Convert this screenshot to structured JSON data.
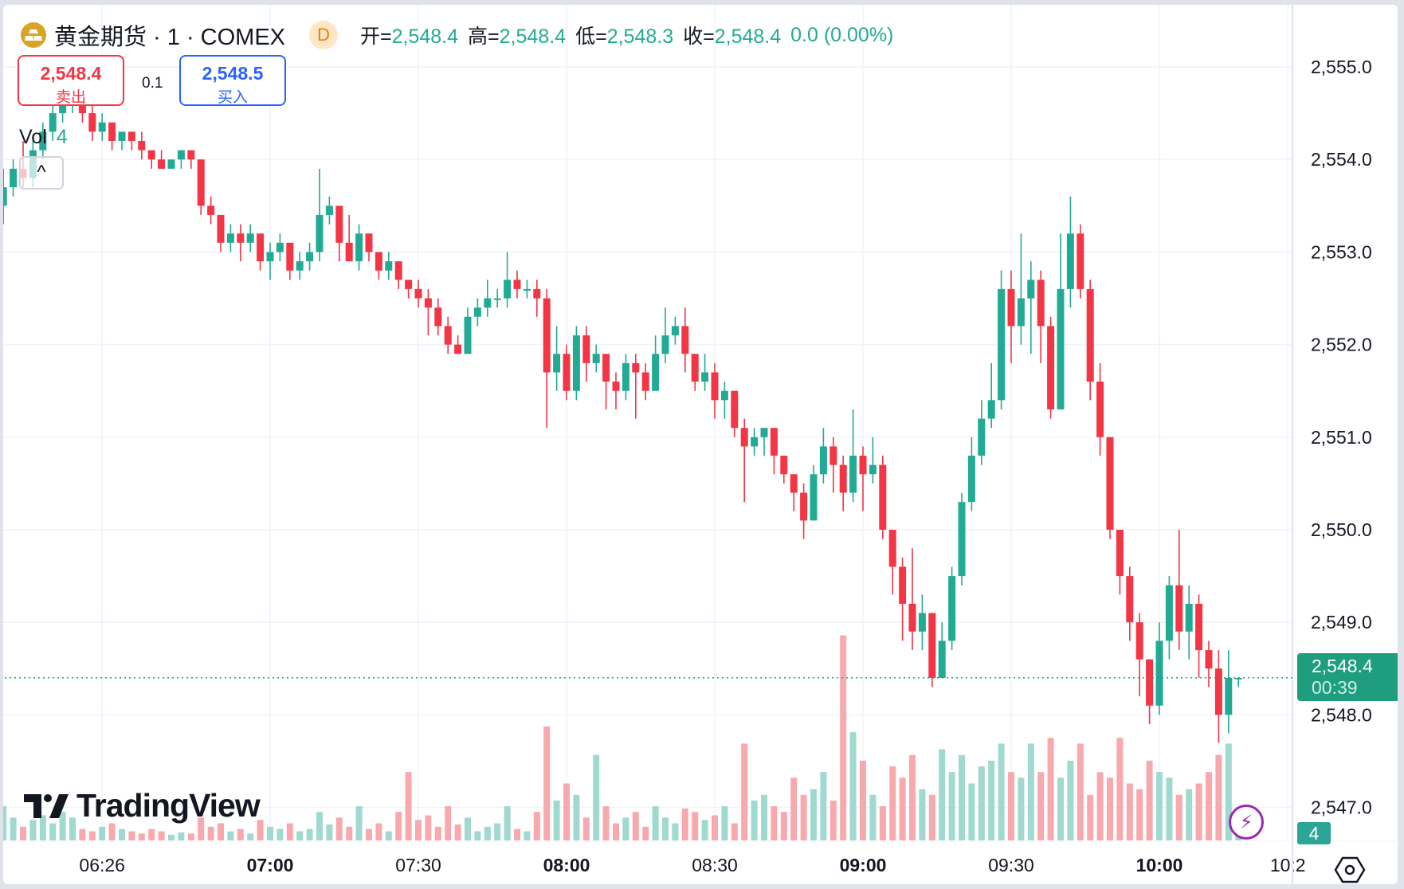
{
  "header": {
    "symbol": "黄金期货 · 1 · COMEX",
    "interval_badge": "D",
    "open_label": "开=",
    "open": "2,548.4",
    "high_label": "高=",
    "high": "2,548.4",
    "low_label": "低=",
    "low": "2,548.3",
    "close_label": "收=",
    "close": "2,548.4",
    "change": "0.0 (0.00%)"
  },
  "trade": {
    "sell_price": "2,548.4",
    "sell_label": "卖出",
    "spread": "0.1",
    "buy_price": "2,548.5",
    "buy_label": "买入"
  },
  "volume_legend": {
    "label": "Vol",
    "value": "4"
  },
  "collapse_icon": "chevron-up-icon",
  "brand": "TradingView",
  "last_price": {
    "price": "2,548.4",
    "countdown": "00:39"
  },
  "last_volume": "4",
  "colors": {
    "up": "#22ab94",
    "down": "#f23645",
    "up_volume": "#9fd9cf",
    "down_volume": "#f7a9ae",
    "last_price": "#1e9e7e"
  },
  "chart_data": {
    "type": "candlestick",
    "interval_minutes": 2,
    "first_time": "06:06",
    "ylim": [
      2546.7,
      2555.3
    ],
    "y_ticks": [
      "2,555.0",
      "2,554.0",
      "2,553.0",
      "2,552.0",
      "2,551.0",
      "2,550.0",
      "2,549.0",
      "2,548.0",
      "2,547.0"
    ],
    "y_tick_values": [
      2555,
      2554,
      2553,
      2552,
      2551,
      2550,
      2549,
      2548,
      2547
    ],
    "x_ticks": [
      {
        "label": "06:26",
        "bold": false
      },
      {
        "label": "07:00",
        "bold": true
      },
      {
        "label": "07:30",
        "bold": false
      },
      {
        "label": "08:00",
        "bold": true
      },
      {
        "label": "08:30",
        "bold": false
      },
      {
        "label": "09:00",
        "bold": true
      },
      {
        "label": "09:30",
        "bold": false
      },
      {
        "label": "10:00",
        "bold": true
      },
      {
        "label": "10:2",
        "bold": false
      }
    ],
    "grid": true,
    "ohlc": [
      [
        2553.5,
        2553.9,
        2553.3,
        2553.7
      ],
      [
        2553.7,
        2554.0,
        2553.6,
        2553.9
      ],
      [
        2553.9,
        2554.2,
        2553.7,
        2553.8
      ],
      [
        2553.8,
        2554.2,
        2553.7,
        2554.1
      ],
      [
        2554.1,
        2554.4,
        2554.0,
        2554.3
      ],
      [
        2554.3,
        2554.6,
        2554.2,
        2554.5
      ],
      [
        2554.5,
        2554.7,
        2554.4,
        2554.6
      ],
      [
        2554.6,
        2554.8,
        2554.5,
        2554.7
      ],
      [
        2554.7,
        2554.8,
        2554.4,
        2554.5
      ],
      [
        2554.5,
        2554.6,
        2554.2,
        2554.3
      ],
      [
        2554.3,
        2554.5,
        2554.2,
        2554.4
      ],
      [
        2554.4,
        2554.4,
        2554.1,
        2554.2
      ],
      [
        2554.2,
        2554.3,
        2554.1,
        2554.3
      ],
      [
        2554.3,
        2554.3,
        2554.1,
        2554.2
      ],
      [
        2554.2,
        2554.3,
        2554.0,
        2554.1
      ],
      [
        2554.1,
        2554.1,
        2553.9,
        2554.0
      ],
      [
        2554.0,
        2554.1,
        2553.9,
        2553.9
      ],
      [
        2553.9,
        2554.0,
        2553.9,
        2554.0
      ],
      [
        2554.0,
        2554.1,
        2553.9,
        2554.1
      ],
      [
        2554.1,
        2554.1,
        2553.9,
        2554.0
      ],
      [
        2554.0,
        2554.0,
        2553.4,
        2553.5
      ],
      [
        2553.5,
        2553.6,
        2553.3,
        2553.4
      ],
      [
        2553.4,
        2553.4,
        2553.0,
        2553.1
      ],
      [
        2553.1,
        2553.3,
        2553.0,
        2553.2
      ],
      [
        2553.2,
        2553.3,
        2552.9,
        2553.1
      ],
      [
        2553.1,
        2553.3,
        2553.0,
        2553.2
      ],
      [
        2553.2,
        2553.2,
        2552.8,
        2552.9
      ],
      [
        2552.9,
        2553.1,
        2552.7,
        2553.0
      ],
      [
        2553.0,
        2553.2,
        2552.9,
        2553.1
      ],
      [
        2553.1,
        2553.1,
        2552.7,
        2552.8
      ],
      [
        2552.8,
        2553.0,
        2552.7,
        2552.9
      ],
      [
        2552.9,
        2553.1,
        2552.8,
        2553.0
      ],
      [
        2553.0,
        2553.9,
        2552.9,
        2553.4
      ],
      [
        2553.4,
        2553.6,
        2553.3,
        2553.5
      ],
      [
        2553.5,
        2553.5,
        2552.9,
        2553.1
      ],
      [
        2553.1,
        2553.4,
        2552.9,
        2552.9
      ],
      [
        2552.9,
        2553.3,
        2552.8,
        2553.2
      ],
      [
        2553.2,
        2553.2,
        2552.9,
        2553.0
      ],
      [
        2553.0,
        2553.0,
        2552.7,
        2552.8
      ],
      [
        2552.8,
        2553.0,
        2552.7,
        2552.9
      ],
      [
        2552.9,
        2552.9,
        2552.6,
        2552.7
      ],
      [
        2552.7,
        2552.7,
        2552.5,
        2552.6
      ],
      [
        2552.6,
        2552.7,
        2552.4,
        2552.5
      ],
      [
        2552.5,
        2552.6,
        2552.1,
        2552.4
      ],
      [
        2552.4,
        2552.5,
        2552.1,
        2552.2
      ],
      [
        2552.2,
        2552.3,
        2551.9,
        2552.0
      ],
      [
        2552.0,
        2552.1,
        2551.9,
        2551.9
      ],
      [
        2551.9,
        2552.4,
        2551.9,
        2552.3
      ],
      [
        2552.3,
        2552.5,
        2552.2,
        2552.4
      ],
      [
        2552.4,
        2552.7,
        2552.3,
        2552.5
      ],
      [
        2552.5,
        2552.6,
        2552.4,
        2552.5
      ],
      [
        2552.5,
        2553.0,
        2552.4,
        2552.7
      ],
      [
        2552.7,
        2552.8,
        2552.5,
        2552.6
      ],
      [
        2552.6,
        2552.7,
        2552.5,
        2552.6
      ],
      [
        2552.6,
        2552.7,
        2552.3,
        2552.5
      ],
      [
        2552.5,
        2552.6,
        2551.1,
        2551.7
      ],
      [
        2551.7,
        2552.2,
        2551.5,
        2551.9
      ],
      [
        2551.9,
        2552.0,
        2551.4,
        2551.5
      ],
      [
        2551.5,
        2552.2,
        2551.4,
        2552.1
      ],
      [
        2552.1,
        2552.2,
        2551.6,
        2551.8
      ],
      [
        2551.8,
        2552.0,
        2551.7,
        2551.9
      ],
      [
        2551.9,
        2551.9,
        2551.3,
        2551.6
      ],
      [
        2551.6,
        2551.7,
        2551.3,
        2551.5
      ],
      [
        2551.5,
        2551.9,
        2551.4,
        2551.8
      ],
      [
        2551.8,
        2551.9,
        2551.2,
        2551.7
      ],
      [
        2551.7,
        2551.8,
        2551.4,
        2551.5
      ],
      [
        2551.5,
        2552.1,
        2551.5,
        2551.9
      ],
      [
        2551.9,
        2552.4,
        2551.8,
        2552.1
      ],
      [
        2552.1,
        2552.3,
        2552.0,
        2552.2
      ],
      [
        2552.2,
        2552.4,
        2551.7,
        2551.9
      ],
      [
        2551.9,
        2551.9,
        2551.5,
        2551.6
      ],
      [
        2551.6,
        2551.9,
        2551.5,
        2551.7
      ],
      [
        2551.7,
        2551.8,
        2551.2,
        2551.4
      ],
      [
        2551.4,
        2551.6,
        2551.2,
        2551.5
      ],
      [
        2551.5,
        2551.5,
        2551.0,
        2551.1
      ],
      [
        2551.1,
        2551.2,
        2550.3,
        2550.9
      ],
      [
        2550.9,
        2551.1,
        2550.8,
        2551.0
      ],
      [
        2551.0,
        2551.1,
        2550.8,
        2551.1
      ],
      [
        2551.1,
        2551.1,
        2550.6,
        2550.8
      ],
      [
        2550.8,
        2550.8,
        2550.5,
        2550.6
      ],
      [
        2550.6,
        2550.6,
        2550.2,
        2550.4
      ],
      [
        2550.4,
        2550.5,
        2549.9,
        2550.1
      ],
      [
        2550.1,
        2550.7,
        2550.1,
        2550.6
      ],
      [
        2550.6,
        2551.1,
        2550.5,
        2550.9
      ],
      [
        2550.9,
        2551.0,
        2550.4,
        2550.7
      ],
      [
        2550.7,
        2550.8,
        2550.2,
        2550.4
      ],
      [
        2550.4,
        2551.3,
        2550.3,
        2550.8
      ],
      [
        2550.8,
        2550.9,
        2550.2,
        2550.6
      ],
      [
        2550.6,
        2551.0,
        2550.5,
        2550.7
      ],
      [
        2550.7,
        2550.8,
        2549.9,
        2550.0
      ],
      [
        2550.0,
        2550.0,
        2549.3,
        2549.6
      ],
      [
        2549.6,
        2549.7,
        2548.8,
        2549.2
      ],
      [
        2549.2,
        2549.8,
        2548.7,
        2548.9
      ],
      [
        2548.9,
        2549.3,
        2548.7,
        2549.1
      ],
      [
        2549.1,
        2549.1,
        2548.3,
        2548.4
      ],
      [
        2548.4,
        2549.0,
        2548.4,
        2548.8
      ],
      [
        2548.8,
        2549.6,
        2548.7,
        2549.5
      ],
      [
        2549.5,
        2550.4,
        2549.4,
        2550.3
      ],
      [
        2550.3,
        2551.0,
        2550.2,
        2550.8
      ],
      [
        2550.8,
        2551.4,
        2550.7,
        2551.2
      ],
      [
        2551.2,
        2551.8,
        2551.1,
        2551.4
      ],
      [
        2551.4,
        2552.8,
        2551.3,
        2552.6
      ],
      [
        2552.6,
        2552.8,
        2551.8,
        2552.2
      ],
      [
        2552.2,
        2553.2,
        2552.0,
        2552.5
      ],
      [
        2552.5,
        2552.9,
        2551.9,
        2552.7
      ],
      [
        2552.7,
        2552.8,
        2551.8,
        2552.2
      ],
      [
        2552.2,
        2552.3,
        2551.2,
        2551.3
      ],
      [
        2551.3,
        2553.2,
        2551.3,
        2552.6
      ],
      [
        2552.6,
        2553.6,
        2552.4,
        2553.2
      ],
      [
        2553.2,
        2553.3,
        2552.5,
        2552.6
      ],
      [
        2552.6,
        2552.7,
        2551.4,
        2551.6
      ],
      [
        2551.6,
        2551.8,
        2550.8,
        2551.0
      ],
      [
        2551.0,
        2551.0,
        2549.9,
        2550.0
      ],
      [
        2550.0,
        2550.0,
        2549.3,
        2549.5
      ],
      [
        2549.5,
        2549.6,
        2548.8,
        2549.0
      ],
      [
        2549.0,
        2549.1,
        2548.2,
        2548.6
      ],
      [
        2548.6,
        2548.6,
        2547.9,
        2548.1
      ],
      [
        2548.1,
        2549.0,
        2548.0,
        2548.8
      ],
      [
        2548.8,
        2549.5,
        2548.6,
        2549.4
      ],
      [
        2549.4,
        2550.0,
        2548.7,
        2548.9
      ],
      [
        2548.9,
        2549.4,
        2548.6,
        2549.2
      ],
      [
        2549.2,
        2549.3,
        2548.4,
        2548.7
      ],
      [
        2548.7,
        2548.8,
        2548.3,
        2548.5
      ],
      [
        2548.5,
        2548.7,
        2547.7,
        2548.0
      ],
      [
        2548.0,
        2548.7,
        2547.8,
        2548.4
      ],
      [
        2548.4,
        2548.4,
        2548.3,
        2548.4
      ]
    ],
    "volume": [
      30,
      20,
      12,
      18,
      22,
      15,
      25,
      20,
      10,
      8,
      12,
      15,
      10,
      8,
      6,
      10,
      8,
      5,
      7,
      6,
      20,
      12,
      15,
      8,
      10,
      6,
      18,
      12,
      10,
      15,
      8,
      10,
      25,
      14,
      20,
      12,
      30,
      10,
      15,
      8,
      25,
      60,
      18,
      22,
      12,
      30,
      14,
      20,
      8,
      12,
      15,
      30,
      10,
      8,
      25,
      100,
      35,
      50,
      40,
      20,
      75,
      30,
      15,
      20,
      25,
      12,
      30,
      20,
      15,
      28,
      25,
      18,
      22,
      30,
      15,
      85,
      35,
      40,
      30,
      25,
      55,
      40,
      45,
      60,
      35,
      180,
      95,
      70,
      40,
      30,
      65,
      55,
      75,
      45,
      40,
      80,
      60,
      75,
      50,
      65,
      70,
      85,
      60,
      55,
      85,
      60,
      90,
      55,
      70,
      85,
      40,
      60,
      55,
      90,
      50,
      45,
      70,
      60,
      55,
      40,
      45,
      50,
      60,
      75,
      85,
      4
    ],
    "last_price": 2548.4
  }
}
